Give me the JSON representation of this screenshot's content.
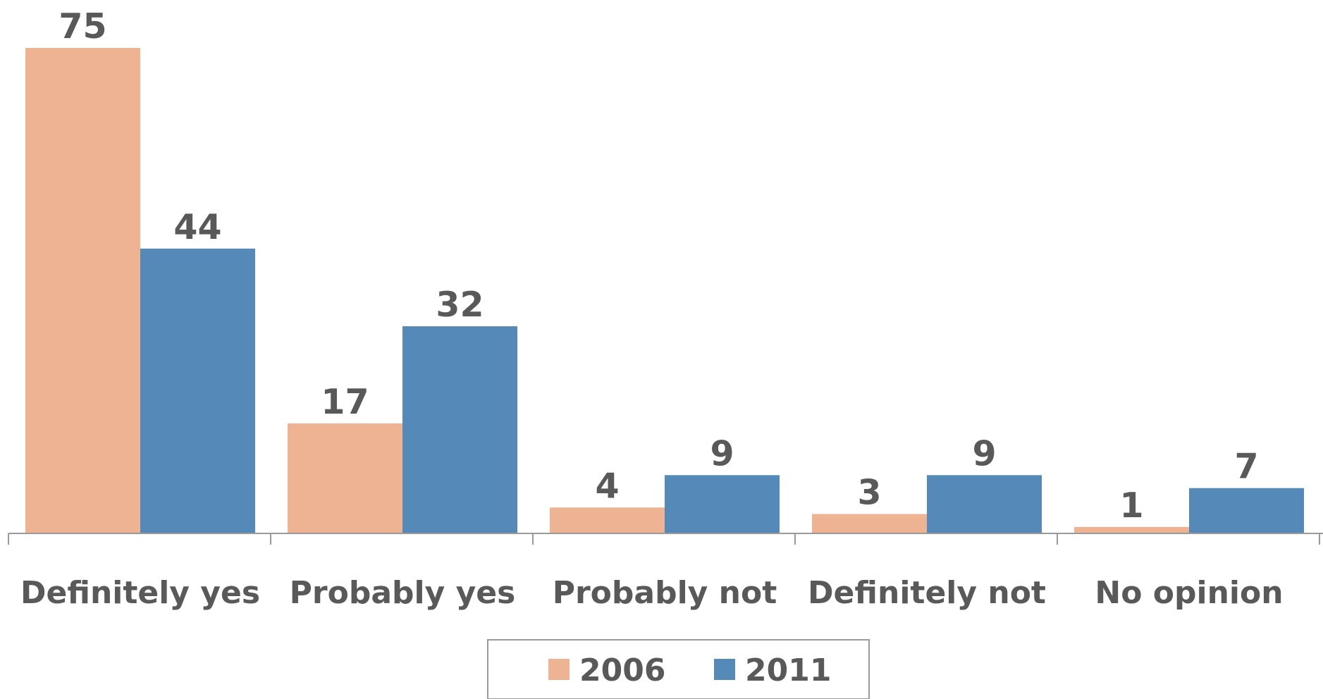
{
  "chart_data": {
    "type": "bar",
    "categories": [
      "Definitely yes",
      "Probably yes",
      "Probably not",
      "Definitely not",
      "No opinion"
    ],
    "series": [
      {
        "name": "2006",
        "values": [
          75,
          17,
          4,
          3,
          1
        ]
      },
      {
        "name": "2011",
        "values": [
          44,
          32,
          9,
          9,
          7
        ]
      }
    ],
    "ylim": [
      0,
      75
    ],
    "grid": false,
    "legend": "bottom",
    "colors": {
      "2006": "#EDB393",
      "2011": "#5589B7",
      "text": "#595959",
      "axis": "#9A9A9A"
    }
  }
}
